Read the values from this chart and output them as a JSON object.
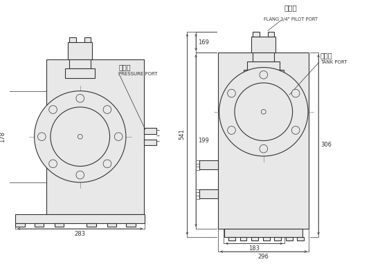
{
  "bg_color": "#ffffff",
  "line_color": "#333333",
  "mid_gray": "#888888",
  "fill_light": "#e8e8e8",
  "labels": {
    "pressure_cn": "壓力口",
    "pressure_en": "PRESSURE PORT",
    "tank_cn": "回油口",
    "tank_en": "TANK PORT",
    "pilot_cn": "引導孔",
    "pilot_en": "FLANG 3/4\" PILOT PORT"
  },
  "dims_left": {
    "width": "283",
    "height": "178"
  },
  "dims_right": {
    "total_height": "541",
    "upper_height": "169",
    "lower_height": "199",
    "right_height": "306",
    "inner_width": "183",
    "total_width": "296"
  }
}
